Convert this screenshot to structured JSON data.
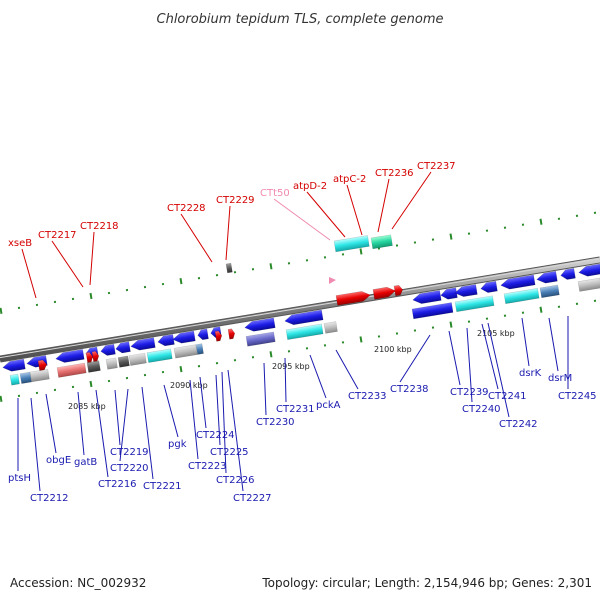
{
  "title": "Chlorobium tepidum TLS, complete genome",
  "accession": "Accession: NC_002932",
  "topology": "Topology: circular; Length: 2,154,946 bp; Genes: 2,301",
  "colors": {
    "top_label": "#d40000",
    "trna_label": "#f08ab0",
    "bottom_label": "#1a1ab0",
    "backbone": "#8a8a8a",
    "gene_blue": "#1c1ce6",
    "gene_red": "#e60000",
    "tick_green": "#1a8a1a"
  },
  "scale_ticks": [
    "2085 kbp",
    "2090 kbp",
    "2095 kbp",
    "2100 kbp",
    "2105 kbp"
  ],
  "top_labels": [
    {
      "text": "xseB",
      "kind": "gene"
    },
    {
      "text": "CT2217",
      "kind": "gene"
    },
    {
      "text": "CT2218",
      "kind": "gene"
    },
    {
      "text": "CT2228",
      "kind": "gene"
    },
    {
      "text": "CT2229",
      "kind": "gene"
    },
    {
      "text": "CTt50",
      "kind": "trna"
    },
    {
      "text": "atpD-2",
      "kind": "gene"
    },
    {
      "text": "atpC-2",
      "kind": "gene"
    },
    {
      "text": "CT2236",
      "kind": "gene"
    },
    {
      "text": "CT2237",
      "kind": "gene"
    }
  ],
  "bottom_labels": [
    "ptsH",
    "CT2212",
    "obgE",
    "gatB",
    "CT2216",
    "CT2219",
    "CT2220",
    "CT2221",
    "pgk",
    "CT2223",
    "CT2224",
    "CT2225",
    "CT2226",
    "CT2227",
    "CT2230",
    "CT2231",
    "pckA",
    "CT2233",
    "CT2238",
    "CT2239",
    "CT2240",
    "CT2241",
    "CT2242",
    "dsrK",
    "dsrM",
    "CT2245"
  ]
}
